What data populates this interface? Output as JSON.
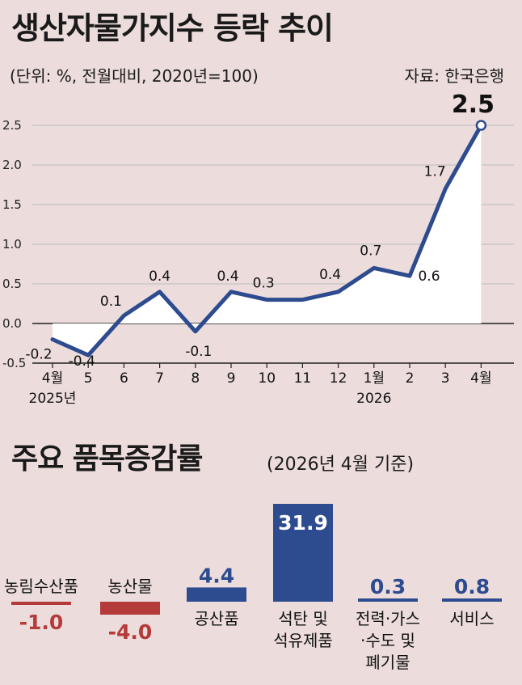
{
  "title": "생산자물가지수 등락 추이",
  "unit_note": "(단위: %, 전월대비, 2020년=100)",
  "source": "자료: 한국은행",
  "chart_data": [
    {
      "type": "area",
      "ylim": [
        -0.5,
        2.5
      ],
      "yticks": [
        "2.5",
        "2.0",
        "1.5",
        "1.0",
        "0.5",
        "0.0",
        "-0.5"
      ],
      "ytick_values": [
        2.5,
        2.0,
        1.5,
        1.0,
        0.5,
        0.0,
        -0.5
      ],
      "categories": [
        "4월",
        "5",
        "6",
        "7",
        "8",
        "9",
        "10",
        "11",
        "12",
        "1월",
        "2",
        "3",
        "4월"
      ],
      "category_sublabels": [
        "2025년",
        "",
        "",
        "",
        "",
        "",
        "",
        "",
        "",
        "2026",
        "",
        "",
        ""
      ],
      "values": [
        -0.2,
        -0.4,
        0.1,
        0.4,
        -0.1,
        0.4,
        0.3,
        0.3,
        0.4,
        0.7,
        0.6,
        1.7,
        2.5
      ],
      "data_labels": [
        "-0.2",
        "-0.4",
        "0.1",
        "0.4",
        "-0.1",
        "0.4",
        "0.3",
        "",
        "0.4",
        "0.7",
        "0.6",
        "1.7",
        "2.5"
      ],
      "line_color": "#2d4b8f",
      "fill_color": "#ffffff",
      "grid": true
    },
    {
      "type": "bar",
      "title": "주요 품목증감률",
      "subtitle": "(2026년 4월 기준)",
      "categories": [
        [
          "농림수산품"
        ],
        [
          "농산물"
        ],
        [
          "공산품"
        ],
        [
          "석탄 및",
          "석유제품"
        ],
        [
          "전력·가스",
          "·수도 및",
          "폐기물"
        ],
        [
          "서비스"
        ]
      ],
      "values": [
        -1.0,
        -4.0,
        4.4,
        31.9,
        0.3,
        0.8
      ],
      "value_labels": [
        "-1.0",
        "-4.0",
        "4.4",
        "31.9",
        "0.3",
        "0.8"
      ],
      "positive_color": "#2d4b8f",
      "negative_color": "#b53a3a"
    }
  ]
}
